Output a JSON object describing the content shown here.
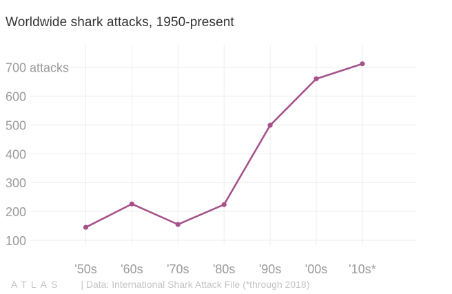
{
  "title": "Worldwide shark attacks, 1950-present",
  "footer": {
    "logo": "ATLAS",
    "source": "| Data: International Shark Attack File (*through 2018)"
  },
  "colors": {
    "line": "#a5528a",
    "axis_text": "#9b9b9b",
    "grid": "#ececec"
  },
  "chart_data": {
    "type": "line",
    "categories": [
      "'50s",
      "'60s",
      "'70s",
      "'80s",
      "'90s",
      "'00s",
      "'10s*"
    ],
    "values": [
      145,
      226,
      155,
      224,
      499,
      660,
      712
    ],
    "y_ticks": [
      100,
      200,
      300,
      400,
      500,
      600,
      700
    ],
    "y_tick_labels": [
      "100",
      "200",
      "300",
      "400",
      "500",
      "600",
      "700 attacks"
    ],
    "ylim": [
      60,
      700
    ],
    "grid": true
  }
}
